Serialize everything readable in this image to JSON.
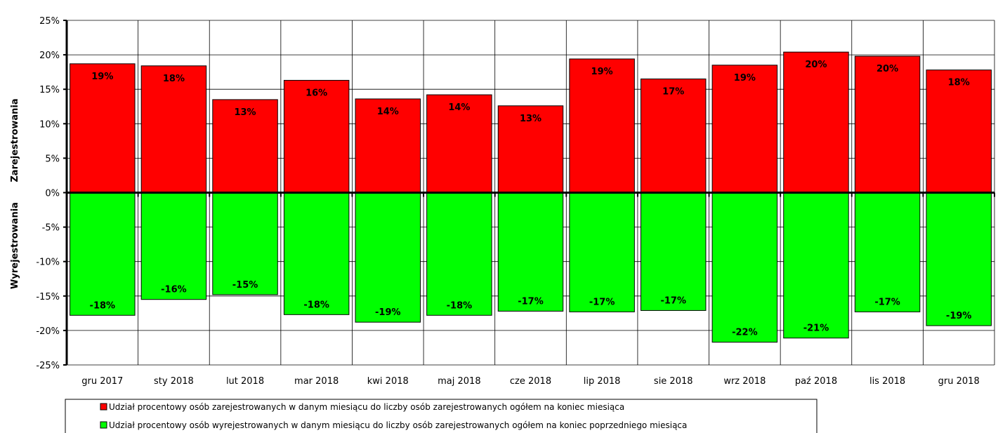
{
  "chart_data": {
    "type": "bar",
    "categories": [
      "gru 2017",
      "sty 2018",
      "lut 2018",
      "mar 2018",
      "kwi 2018",
      "maj 2018",
      "cze 2018",
      "lip 2018",
      "sie 2018",
      "wrz 2018",
      "paź 2018",
      "lis 2018",
      "gru 2018"
    ],
    "series": [
      {
        "name": "Udział procentowy osób zarejestrowanych w danym miesiącu do liczby osób zarejestrowanych ogółem na koniec miesiąca",
        "color": "#ff0000",
        "values": [
          18.7,
          18.4,
          13.5,
          16.3,
          13.6,
          14.2,
          12.6,
          19.4,
          16.5,
          18.5,
          20.4,
          19.8,
          17.8
        ],
        "labels": [
          "19%",
          "18%",
          "13%",
          "16%",
          "14%",
          "14%",
          "13%",
          "19%",
          "17%",
          "19%",
          "20%",
          "20%",
          "18%"
        ]
      },
      {
        "name": "Udział procentowy osób wyrejestrowanych w danym miesiącu do liczby osób zarejestrowanych ogółem na koniec poprzedniego miesiąca",
        "color": "#00ff00",
        "values": [
          -17.8,
          -15.5,
          -14.8,
          -17.7,
          -18.8,
          -17.8,
          -17.2,
          -17.3,
          -17.1,
          -21.7,
          -21.1,
          -17.3,
          -19.3
        ],
        "labels": [
          "-18%",
          "-16%",
          "-15%",
          "-18%",
          "-19%",
          "-18%",
          "-17%",
          "-17%",
          "-17%",
          "-22%",
          "-21%",
          "-17%",
          "-19%"
        ]
      }
    ],
    "ylim": [
      -25,
      25
    ],
    "yticks": [
      "25%",
      "20%",
      "15%",
      "10%",
      "5%",
      "0%",
      "-5%",
      "-10%",
      "-15%",
      "-20%",
      "-25%"
    ],
    "ylabel_top": "Zarejestrowania",
    "ylabel_bottom": "Wyrejestrowania",
    "grid": true,
    "legend_position": "bottom"
  }
}
